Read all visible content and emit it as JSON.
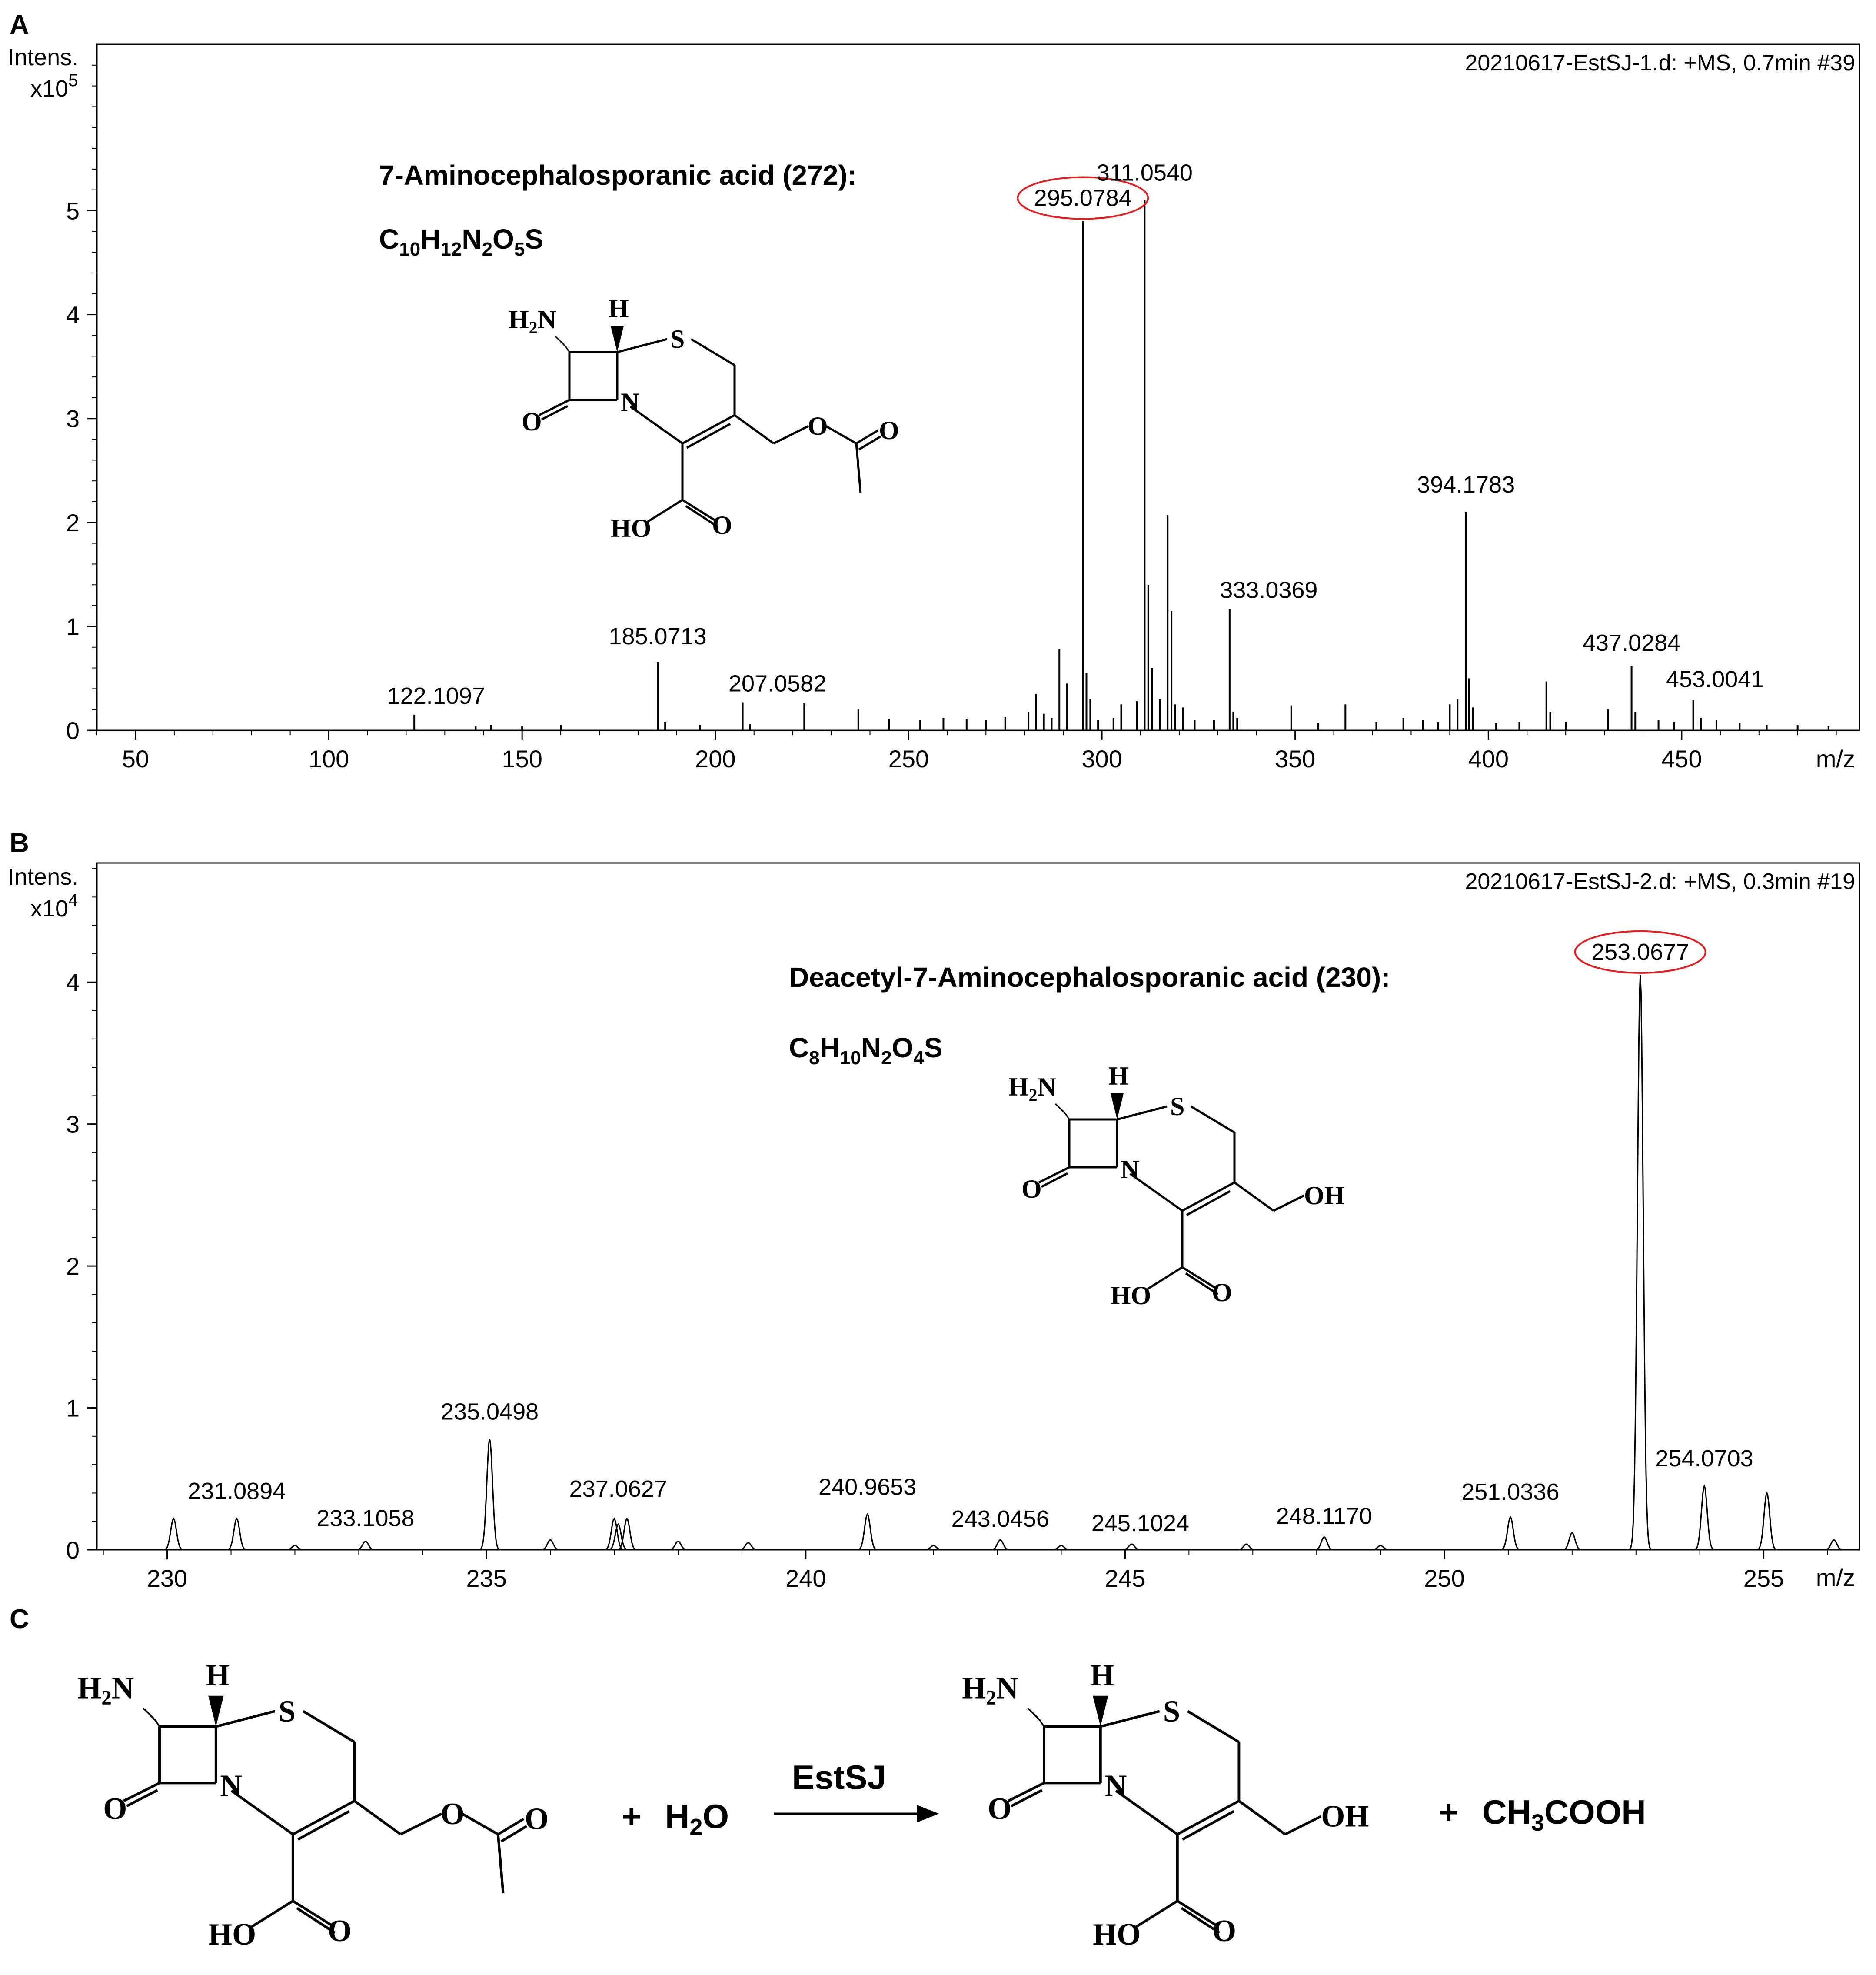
{
  "chart_data": [
    {
      "panel": "A",
      "type": "bar",
      "info": "20210617-EstSJ-1.d: +MS, 0.7min #39",
      "ylabel_line1": "Intens.",
      "ylabel_line2": "x10",
      "ylabel_exp": "5",
      "xlabel": "m/z",
      "xlim": [
        40,
        496
      ],
      "ylim": [
        0,
        6.6
      ],
      "xticks": [
        50,
        100,
        150,
        200,
        250,
        300,
        350,
        400,
        450
      ],
      "yticks": [
        0,
        1,
        2,
        3,
        4,
        5
      ],
      "compound_name": "7-Aminocephalosporanic acid (272):",
      "highlighted_peak": "295.0784",
      "peaks": [
        {
          "x": 122.1097,
          "y": 0.15
        },
        {
          "x": 138,
          "y": 0.04
        },
        {
          "x": 142,
          "y": 0.05
        },
        {
          "x": 150,
          "y": 0.04
        },
        {
          "x": 160,
          "y": 0.05
        },
        {
          "x": 185.0713,
          "y": 0.66
        },
        {
          "x": 187,
          "y": 0.08
        },
        {
          "x": 196,
          "y": 0.05
        },
        {
          "x": 207.0582,
          "y": 0.27
        },
        {
          "x": 209,
          "y": 0.06
        },
        {
          "x": 223,
          "y": 0.26
        },
        {
          "x": 237,
          "y": 0.2
        },
        {
          "x": 245,
          "y": 0.11
        },
        {
          "x": 253,
          "y": 0.1
        },
        {
          "x": 259,
          "y": 0.12
        },
        {
          "x": 265,
          "y": 0.11
        },
        {
          "x": 270,
          "y": 0.1
        },
        {
          "x": 275,
          "y": 0.13
        },
        {
          "x": 281,
          "y": 0.18
        },
        {
          "x": 283,
          "y": 0.35
        },
        {
          "x": 285,
          "y": 0.16
        },
        {
          "x": 287,
          "y": 0.12
        },
        {
          "x": 289,
          "y": 0.78
        },
        {
          "x": 291,
          "y": 0.45
        },
        {
          "x": 295.0784,
          "y": 4.9
        },
        {
          "x": 296,
          "y": 0.55
        },
        {
          "x": 297,
          "y": 0.3
        },
        {
          "x": 299,
          "y": 0.1
        },
        {
          "x": 303,
          "y": 0.12
        },
        {
          "x": 305,
          "y": 0.25
        },
        {
          "x": 309,
          "y": 0.28
        },
        {
          "x": 311.054,
          "y": 5.1
        },
        {
          "x": 312,
          "y": 1.4
        },
        {
          "x": 313,
          "y": 0.6
        },
        {
          "x": 315,
          "y": 0.3
        },
        {
          "x": 317,
          "y": 2.07
        },
        {
          "x": 318,
          "y": 1.15
        },
        {
          "x": 319,
          "y": 0.25
        },
        {
          "x": 321,
          "y": 0.22
        },
        {
          "x": 324,
          "y": 0.1
        },
        {
          "x": 329,
          "y": 0.1
        },
        {
          "x": 333.0369,
          "y": 1.17
        },
        {
          "x": 334,
          "y": 0.18
        },
        {
          "x": 335,
          "y": 0.12
        },
        {
          "x": 349,
          "y": 0.24
        },
        {
          "x": 356,
          "y": 0.07
        },
        {
          "x": 363,
          "y": 0.25
        },
        {
          "x": 371,
          "y": 0.08
        },
        {
          "x": 378,
          "y": 0.12
        },
        {
          "x": 383,
          "y": 0.1
        },
        {
          "x": 387,
          "y": 0.08
        },
        {
          "x": 390,
          "y": 0.25
        },
        {
          "x": 392,
          "y": 0.3
        },
        {
          "x": 394.1783,
          "y": 2.1
        },
        {
          "x": 395,
          "y": 0.5
        },
        {
          "x": 396,
          "y": 0.22
        },
        {
          "x": 402,
          "y": 0.07
        },
        {
          "x": 408,
          "y": 0.08
        },
        {
          "x": 415,
          "y": 0.47
        },
        {
          "x": 416,
          "y": 0.18
        },
        {
          "x": 420,
          "y": 0.08
        },
        {
          "x": 431,
          "y": 0.2
        },
        {
          "x": 437.0284,
          "y": 0.62
        },
        {
          "x": 438,
          "y": 0.18
        },
        {
          "x": 444,
          "y": 0.1
        },
        {
          "x": 448,
          "y": 0.08
        },
        {
          "x": 453.0041,
          "y": 0.29
        },
        {
          "x": 455,
          "y": 0.12
        },
        {
          "x": 459,
          "y": 0.1
        },
        {
          "x": 465,
          "y": 0.07
        },
        {
          "x": 472,
          "y": 0.05
        },
        {
          "x": 480,
          "y": 0.05
        },
        {
          "x": 488,
          "y": 0.04
        }
      ],
      "peak_labels": [
        {
          "x": 122.1097,
          "y": 0.15,
          "text": "122.1097"
        },
        {
          "x": 185.0713,
          "y": 0.66,
          "text": "185.0713"
        },
        {
          "x": 207.0582,
          "y": 0.27,
          "text": "207.0582"
        },
        {
          "x": 295.0784,
          "y": 4.9,
          "text": "295.0784"
        },
        {
          "x": 311.054,
          "y": 5.1,
          "text": "311.0540"
        },
        {
          "x": 333.0369,
          "y": 1.17,
          "text": "333.0369"
        },
        {
          "x": 394.1783,
          "y": 2.1,
          "text": "394.1783"
        },
        {
          "x": 437.0284,
          "y": 0.62,
          "text": "437.0284"
        },
        {
          "x": 453.0041,
          "y": 0.29,
          "text": "453.0041"
        }
      ]
    },
    {
      "panel": "B",
      "type": "line",
      "info": "20210617-EstSJ-2.d: +MS, 0.3min #19",
      "ylabel_line1": "Intens.",
      "ylabel_line2": "x10",
      "ylabel_exp": "4",
      "xlabel": "m/z",
      "xlim": [
        228.9,
        256.5
      ],
      "ylim": [
        0,
        4.84
      ],
      "xticks": [
        230,
        235,
        240,
        245,
        250,
        255
      ],
      "yticks": [
        0,
        1,
        2,
        3,
        4
      ],
      "compound_name": "Deacetyl-7-Aminocephalosporanic acid (230):",
      "highlighted_peak": "253.0677",
      "peaks": [
        {
          "x": 230.1,
          "y": 0.22
        },
        {
          "x": 231.0894,
          "y": 0.22
        },
        {
          "x": 232.0,
          "y": 0.03
        },
        {
          "x": 233.1058,
          "y": 0.06
        },
        {
          "x": 235.0498,
          "y": 0.78
        },
        {
          "x": 236.0,
          "y": 0.07
        },
        {
          "x": 237.0,
          "y": 0.22
        },
        {
          "x": 237.0627,
          "y": 0.18
        },
        {
          "x": 237.2,
          "y": 0.22
        },
        {
          "x": 238.0,
          "y": 0.06
        },
        {
          "x": 239.1,
          "y": 0.05
        },
        {
          "x": 240.9653,
          "y": 0.25
        },
        {
          "x": 242.0,
          "y": 0.03
        },
        {
          "x": 243.0456,
          "y": 0.07
        },
        {
          "x": 244.0,
          "y": 0.03
        },
        {
          "x": 245.1024,
          "y": 0.04
        },
        {
          "x": 246.9,
          "y": 0.04
        },
        {
          "x": 248.117,
          "y": 0.09
        },
        {
          "x": 249.0,
          "y": 0.03
        },
        {
          "x": 251.0336,
          "y": 0.23
        },
        {
          "x": 252.0,
          "y": 0.12
        },
        {
          "x": 253.0677,
          "y": 4.05
        },
        {
          "x": 254.0703,
          "y": 0.45
        },
        {
          "x": 255.05,
          "y": 0.4
        },
        {
          "x": 256.1,
          "y": 0.07
        }
      ],
      "peak_labels": [
        {
          "x": 231.0894,
          "y": 0.22,
          "text": "231.0894"
        },
        {
          "x": 233.1058,
          "y": 0.06,
          "text": "233.1058"
        },
        {
          "x": 235.0498,
          "y": 0.78,
          "text": "235.0498"
        },
        {
          "x": 237.0627,
          "y": 0.22,
          "text": "237.0627"
        },
        {
          "x": 240.9653,
          "y": 0.25,
          "text": "240.9653"
        },
        {
          "x": 243.0456,
          "y": 0.07,
          "text": "243.0456"
        },
        {
          "x": 245.1024,
          "y": 0.04,
          "text": "245.1024"
        },
        {
          "x": 248.117,
          "y": 0.09,
          "text": "248.1170"
        },
        {
          "x": 251.0336,
          "y": 0.23,
          "text": "251.0336"
        },
        {
          "x": 253.0677,
          "y": 4.05,
          "text": "253.0677"
        },
        {
          "x": 254.0703,
          "y": 0.45,
          "text": "254.0703"
        }
      ]
    }
  ],
  "panel_letters": {
    "a": "A",
    "b": "B",
    "c": "C"
  },
  "formulas": {
    "a": {
      "C": "C",
      "n1": "10",
      "H": "H",
      "n2": "12",
      "N": "N",
      "n3": "2",
      "O": "O",
      "n4": "5",
      "S": "S"
    },
    "b": {
      "C": "C",
      "n1": "8",
      "H": "H",
      "n2": "10",
      "N": "N",
      "n3": "2",
      "O": "O",
      "n4": "4",
      "S": "S"
    }
  },
  "reaction": {
    "plus1": "+",
    "water": "H",
    "water_sub": "2",
    "water_tail": "O",
    "enzyme": "EstSJ",
    "plus2": "+",
    "acid": "CH",
    "acid_sub": "3",
    "acid_tail": "COOH"
  },
  "atoms": {
    "h2": "H",
    "two": "2",
    "n": "N",
    "h": "H",
    "s": "S",
    "o": "O",
    "ho": "HO",
    "oh": "OH"
  }
}
